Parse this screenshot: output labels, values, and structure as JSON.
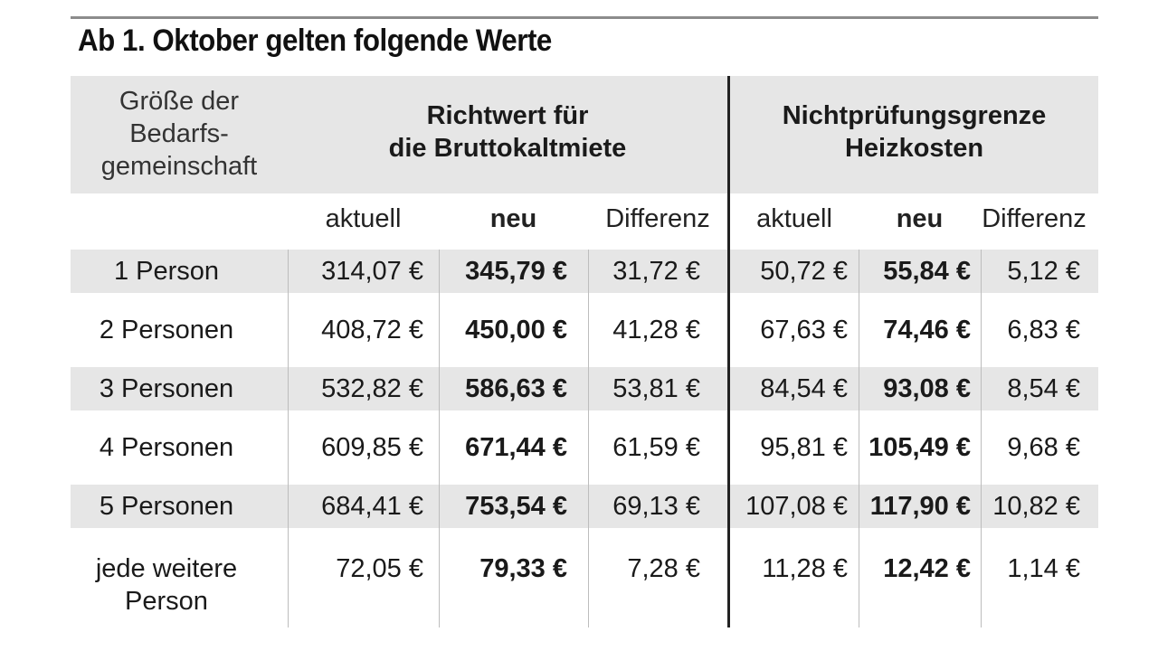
{
  "title": "Ab 1. Oktober gelten folgende Werte",
  "header": {
    "size_label_line1": "Größe der",
    "size_label_line2": "Bedarfs-",
    "size_label_line3": "gemeinschaft",
    "group1_line1": "Richtwert für",
    "group1_line2": "die Bruttokaltmiete",
    "group2_line1": "Nichtprüfungsgrenze",
    "group2_line2": "Heizkosten"
  },
  "columns": [
    "aktuell",
    "neu",
    "Differenz",
    "aktuell",
    "neu",
    "Differenz"
  ],
  "rows": [
    {
      "label": "1 Person",
      "label2": "",
      "values": [
        "314,07 €",
        "345,79 €",
        "31,72 €",
        "50,72 €",
        "55,84 €",
        "5,12 €"
      ]
    },
    {
      "label": "2 Personen",
      "label2": "",
      "values": [
        "408,72 €",
        "450,00 €",
        "41,28 €",
        "67,63 €",
        "74,46 €",
        "6,83 €"
      ]
    },
    {
      "label": "3 Personen",
      "label2": "",
      "values": [
        "532,82 €",
        "586,63 €",
        "53,81 €",
        "84,54 €",
        "93,08 €",
        "8,54 €"
      ]
    },
    {
      "label": "4 Personen",
      "label2": "",
      "values": [
        "609,85 €",
        "671,44 €",
        "61,59 €",
        "95,81 €",
        "105,49 €",
        "9,68 €"
      ]
    },
    {
      "label": "5 Personen",
      "label2": "",
      "values": [
        "684,41 €",
        "753,54 €",
        "69,13 €",
        "107,08 €",
        "117,90 €",
        "10,82 €"
      ]
    },
    {
      "label": "jede weitere",
      "label2": "Person",
      "values": [
        "72,05 €",
        "79,33 €",
        "7,28 €",
        "11,28 €",
        "12,42 €",
        "1,14 €"
      ]
    }
  ]
}
